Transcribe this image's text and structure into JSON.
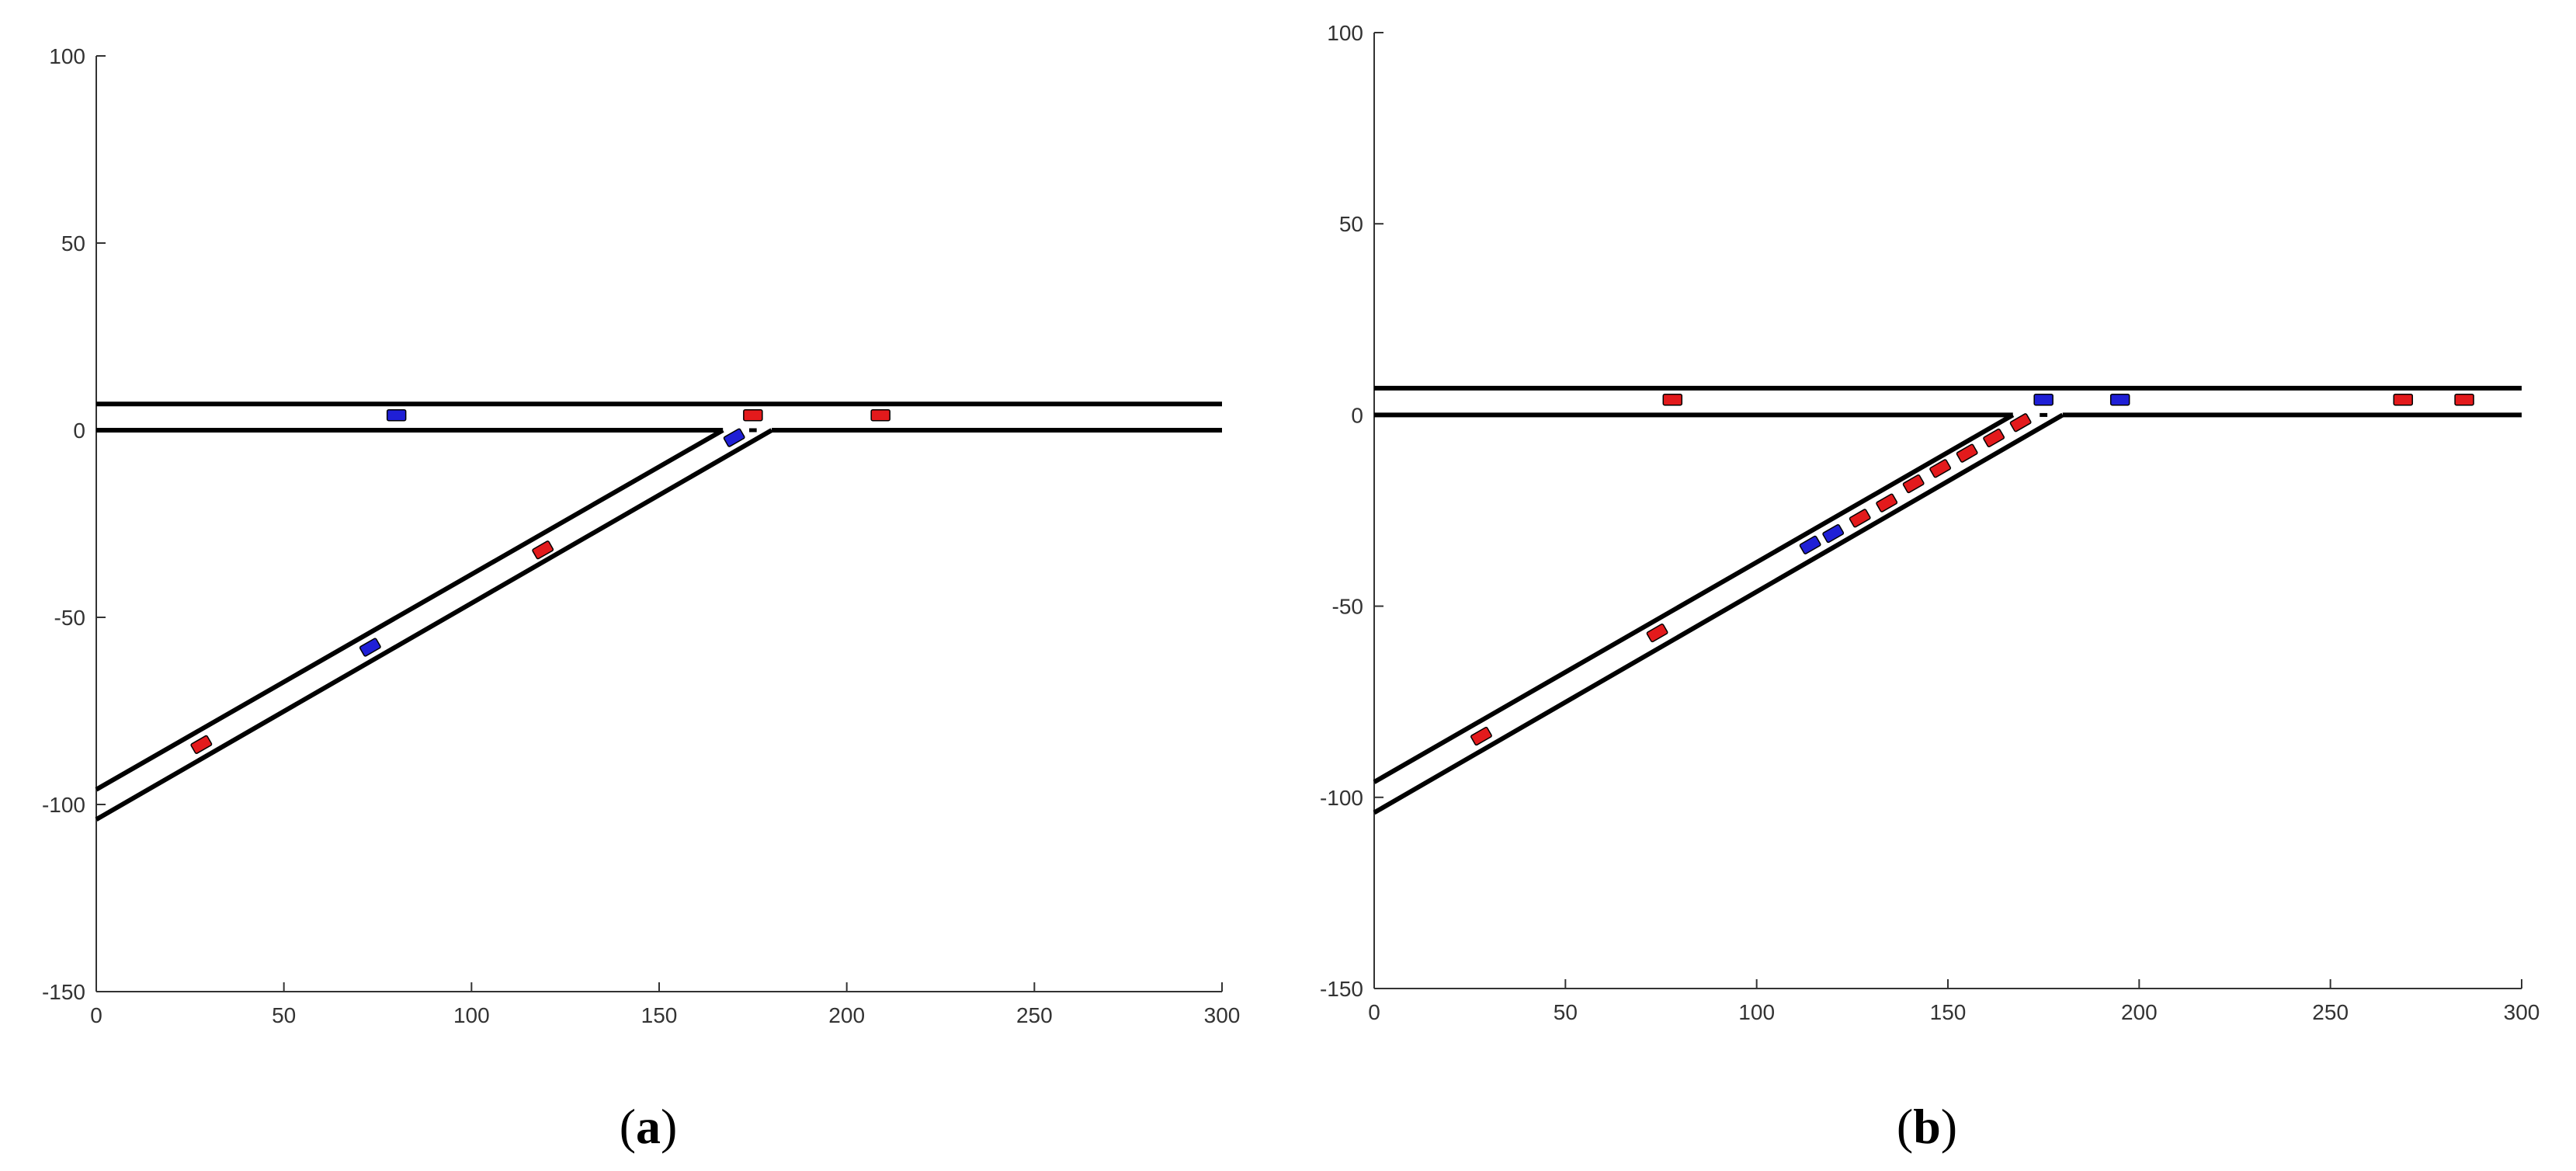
{
  "figure": {
    "colors": {
      "road": "#000000",
      "axis": "#333333",
      "hdv": "#e31a1c",
      "cav": "#1f1fd6",
      "car_outline": "#000000"
    },
    "panels": [
      {
        "id": "a",
        "caption": {
          "open": "(",
          "letter": "a",
          "close": ")"
        },
        "chart_data": {
          "type": "scatter",
          "xlim": [
            0,
            300
          ],
          "ylim": [
            -150,
            100
          ],
          "xticks": [
            0,
            50,
            100,
            150,
            200,
            250,
            300
          ],
          "yticks": [
            -150,
            -100,
            -50,
            0,
            50,
            100
          ],
          "roads": {
            "main_lane": {
              "y_bottom": 0,
              "y_top": 7,
              "x_start": 0,
              "x_end": 300
            },
            "on_ramp": {
              "upper_edge": [
                [
                  0,
                  -96
                ],
                [
                  167,
                  0
                ]
              ],
              "lower_edge": [
                [
                  0,
                  -104
                ],
                [
                  180,
                  0
                ]
              ],
              "merge_dash": [
                [
                  174,
                  0
                ],
                [
                  176,
                  0
                ]
              ]
            }
          },
          "vehicles": [
            {
              "x": 80,
              "y": 4,
              "type": "cav"
            },
            {
              "x": 175,
              "y": 4,
              "type": "hdv"
            },
            {
              "x": 209,
              "y": 4,
              "type": "hdv"
            },
            {
              "x": 170,
              "y": -2,
              "type": "cav"
            },
            {
              "x": 119,
              "y": -32,
              "type": "hdv"
            },
            {
              "x": 73,
              "y": -58,
              "type": "cav"
            },
            {
              "x": 28,
              "y": -84,
              "type": "hdv"
            }
          ]
        }
      },
      {
        "id": "b",
        "caption": {
          "open": "(",
          "letter": "b",
          "close": ")"
        },
        "chart_data": {
          "type": "scatter",
          "xlim": [
            0,
            300
          ],
          "ylim": [
            -150,
            100
          ],
          "xticks": [
            0,
            50,
            100,
            150,
            200,
            250,
            300
          ],
          "yticks": [
            -150,
            -100,
            -50,
            0,
            50,
            100
          ],
          "roads": {
            "main_lane": {
              "y_bottom": 0,
              "y_top": 7,
              "x_start": 0,
              "x_end": 300
            },
            "on_ramp": {
              "upper_edge": [
                [
                  0,
                  -96
                ],
                [
                  167,
                  0
                ]
              ],
              "lower_edge": [
                [
                  0,
                  -104
                ],
                [
                  180,
                  0
                ]
              ],
              "merge_dash": [
                [
                  174,
                  0
                ],
                [
                  176,
                  0
                ]
              ]
            }
          },
          "vehicles": [
            {
              "x": 78,
              "y": 4,
              "type": "hdv"
            },
            {
              "x": 175,
              "y": 4,
              "type": "cav"
            },
            {
              "x": 195,
              "y": 4,
              "type": "cav"
            },
            {
              "x": 269,
              "y": 4,
              "type": "hdv"
            },
            {
              "x": 285,
              "y": 4,
              "type": "hdv"
            },
            {
              "x": 169,
              "y": -2,
              "type": "hdv"
            },
            {
              "x": 162,
              "y": -6,
              "type": "hdv"
            },
            {
              "x": 155,
              "y": -10,
              "type": "hdv"
            },
            {
              "x": 148,
              "y": -14,
              "type": "hdv"
            },
            {
              "x": 141,
              "y": -18,
              "type": "hdv"
            },
            {
              "x": 134,
              "y": -23,
              "type": "hdv"
            },
            {
              "x": 127,
              "y": -27,
              "type": "hdv"
            },
            {
              "x": 120,
              "y": -31,
              "type": "cav"
            },
            {
              "x": 114,
              "y": -34,
              "type": "cav"
            },
            {
              "x": 74,
              "y": -57,
              "type": "hdv"
            },
            {
              "x": 28,
              "y": -84,
              "type": "hdv"
            }
          ]
        }
      }
    ]
  }
}
